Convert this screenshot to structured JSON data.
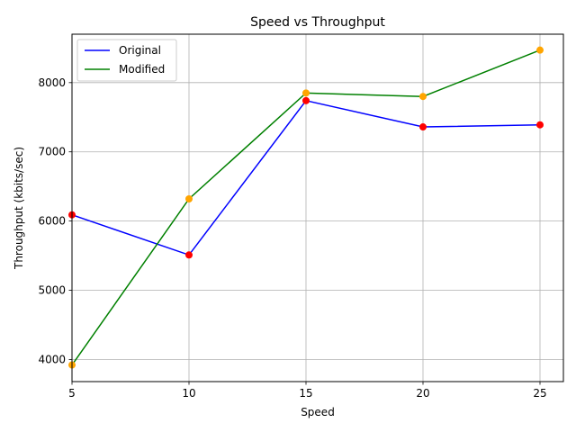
{
  "chart_data": {
    "type": "line",
    "title": "Speed vs Throughput",
    "xlabel": "Speed",
    "ylabel": "Throughput (kbits/sec)",
    "x": [
      5,
      10,
      15,
      20,
      25
    ],
    "xlim": [
      5,
      26
    ],
    "ylim": [
      3680,
      8700
    ],
    "xticks": [
      5,
      10,
      15,
      20,
      25
    ],
    "yticks": [
      4000,
      5000,
      6000,
      7000,
      8000
    ],
    "grid": true,
    "legend_position": "top-left",
    "series": [
      {
        "name": "Original",
        "values": [
          6090,
          5510,
          7740,
          7360,
          7390
        ],
        "line_color": "#0000ff",
        "marker_color": "#ff0000"
      },
      {
        "name": "Modified",
        "values": [
          3920,
          6320,
          7850,
          7800,
          8470
        ],
        "line_color": "#008000",
        "marker_color": "#ffa500"
      }
    ]
  }
}
